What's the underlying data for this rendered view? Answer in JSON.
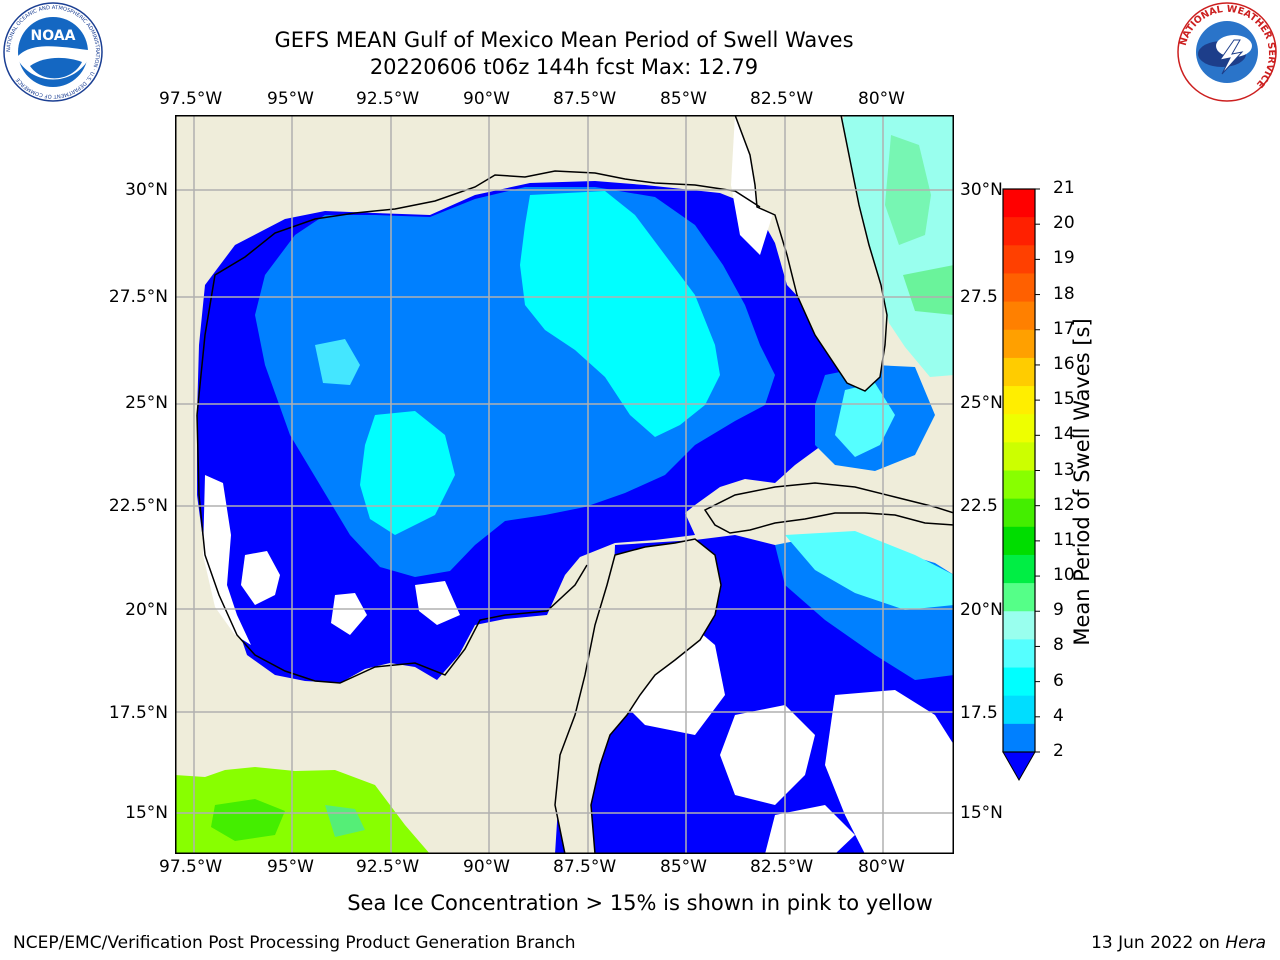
{
  "header": {
    "title_line1": "GEFS MEAN Gulf of Mexico Mean Period of Swell Waves",
    "title_line2": "20220606 t06z 144h fcst   Max: 12.79",
    "left_logo": {
      "text": "NOAA",
      "icon": "noaa-logo-icon",
      "ring_text": "NATIONAL OCEANIC AND ATMOSPHERIC ADMINISTRATION · U.S. DEPARTMENT OF COMMERCE"
    },
    "right_logo": {
      "icon": "nws-logo-icon",
      "ring_text": "NATIONAL WEATHER SERVICE"
    }
  },
  "map": {
    "lon_labels": [
      "97.5°W",
      "95°W",
      "92.5°W",
      "90°W",
      "87.5°W",
      "85°W",
      "82.5°W",
      "80°W"
    ],
    "lat_labels_left": [
      "30°N",
      "27.5°N",
      "25°N",
      "22.5°N",
      "20°N",
      "17.5°N",
      "15°N"
    ],
    "lat_labels_right": [
      "30°N",
      "27.5",
      "25°N",
      "22.5",
      "20°N",
      "17.5",
      "15°N"
    ],
    "colors": {
      "land": "#efedda",
      "ocean_deep": "#0000ff",
      "ocean_mid": "#0080ff",
      "ocean_light": "#00ffff",
      "ocean_pale": "#80ffff",
      "green": "#55ee66",
      "lime": "#88ff00",
      "grid": "#b0b0b0"
    }
  },
  "colorbar": {
    "label": "Mean Period of Swell Waves [s]",
    "ticks": [
      "21",
      "20",
      "19",
      "18",
      "17",
      "16",
      "15",
      "14",
      "13",
      "12",
      "11",
      "10",
      "9",
      "8",
      "6",
      "4",
      "2"
    ],
    "colors_top_to_bottom": [
      "#ff0000",
      "#ff2000",
      "#ff4000",
      "#ff6000",
      "#ff8000",
      "#ffa000",
      "#ffcc00",
      "#ffee00",
      "#eeff00",
      "#ccff00",
      "#88ff00",
      "#44ee00",
      "#00dd00",
      "#00ee44",
      "#55ff88",
      "#99ffee",
      "#55ffff",
      "#00ffff",
      "#00ddff",
      "#0080ff"
    ],
    "extend_color": "#0000ff"
  },
  "footer": {
    "note": "Sea Ice Concentration > 15% is shown in pink to yellow",
    "credit": "NCEP/EMC/Verification Post Processing Product Generation Branch",
    "date_prefix": "13 Jun 2022 on ",
    "date_host": "Hera"
  }
}
